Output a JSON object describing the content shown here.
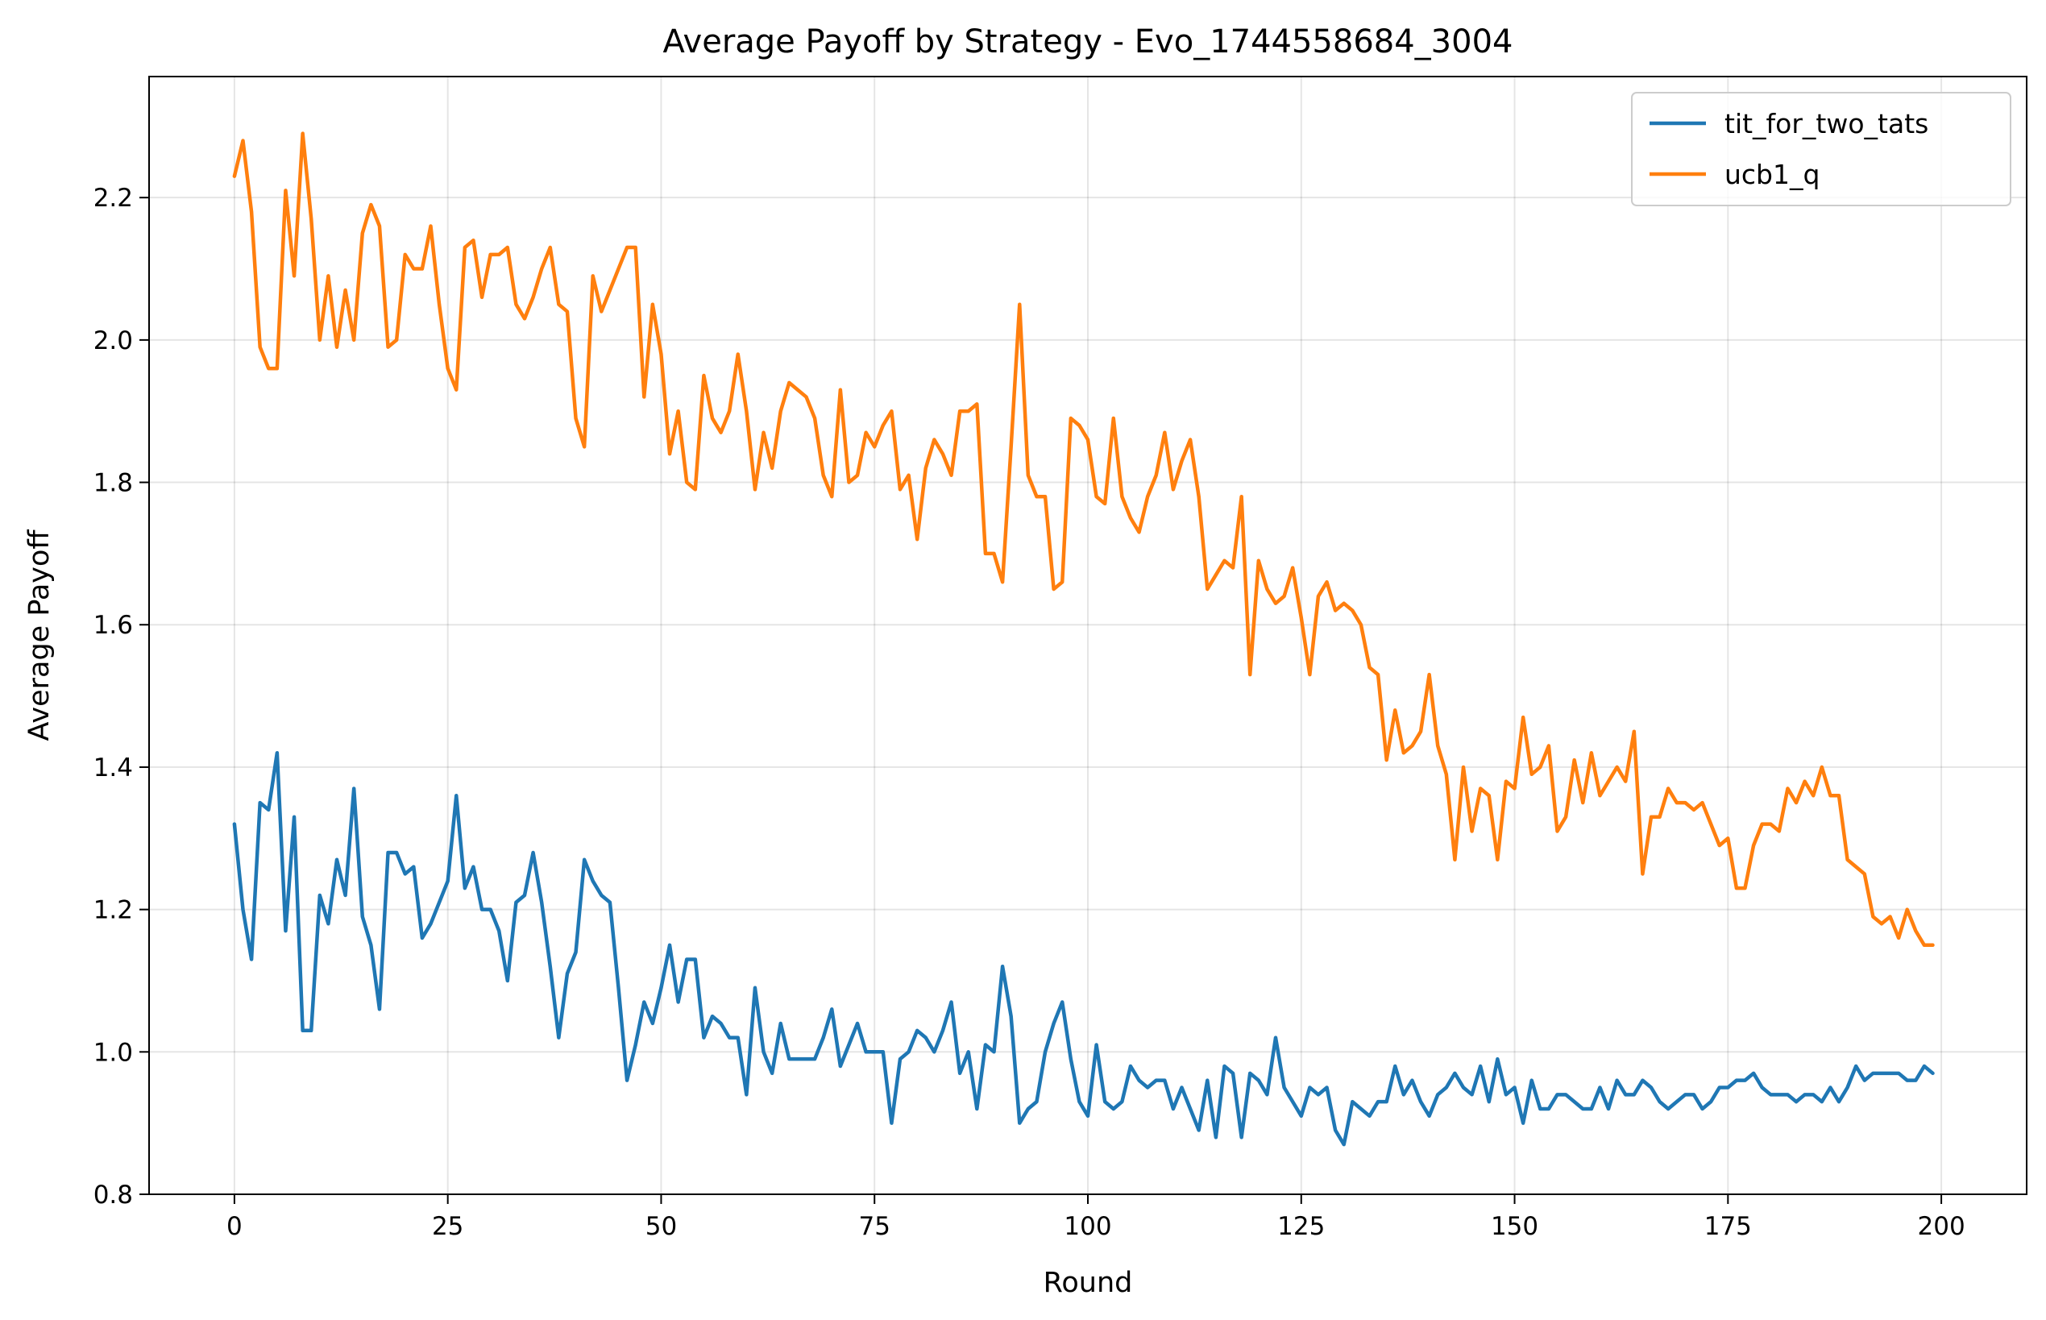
{
  "chart_data": {
    "type": "line",
    "title": "Average Payoff by Strategy - Evo_1744558684_3004",
    "xlabel": "Round",
    "ylabel": "Average Payoff",
    "xlim": [
      -10,
      210
    ],
    "ylim": [
      0.8,
      2.37
    ],
    "xticks": [
      0,
      25,
      50,
      75,
      100,
      125,
      150,
      175,
      200
    ],
    "xtick_labels": [
      "0",
      "25",
      "50",
      "75",
      "100",
      "125",
      "150",
      "175",
      "200"
    ],
    "yticks": [
      0.8,
      1.0,
      1.2,
      1.4,
      1.6,
      1.8,
      2.0,
      2.2
    ],
    "ytick_labels": [
      "0.8",
      "1.0",
      "1.2",
      "1.4",
      "1.6",
      "1.8",
      "2.0",
      "2.2"
    ],
    "grid": true,
    "legend_position": "top-right",
    "series": [
      {
        "name": "tit_for_two_tats",
        "color": "#1f77b4",
        "values": [
          1.32,
          1.2,
          1.13,
          1.35,
          1.34,
          1.42,
          1.17,
          1.33,
          1.03,
          1.03,
          1.22,
          1.18,
          1.27,
          1.22,
          1.37,
          1.19,
          1.15,
          1.06,
          1.28,
          1.28,
          1.25,
          1.26,
          1.16,
          1.18,
          1.21,
          1.24,
          1.36,
          1.23,
          1.26,
          1.2,
          1.2,
          1.17,
          1.1,
          1.21,
          1.22,
          1.28,
          1.21,
          1.12,
          1.02,
          1.11,
          1.14,
          1.27,
          1.24,
          1.22,
          1.21,
          1.09,
          0.96,
          1.01,
          1.07,
          1.04,
          1.09,
          1.15,
          1.07,
          1.13,
          1.13,
          1.02,
          1.05,
          1.04,
          1.02,
          1.02,
          0.94,
          1.09,
          1.0,
          0.97,
          1.04,
          0.99,
          0.99,
          0.99,
          0.99,
          1.02,
          1.06,
          0.98,
          1.01,
          1.04,
          1.0,
          1.0,
          1.0,
          0.9,
          0.99,
          1.0,
          1.03,
          1.02,
          1.0,
          1.03,
          1.07,
          0.97,
          1.0,
          0.92,
          1.01,
          1.0,
          1.12,
          1.05,
          0.9,
          0.92,
          0.93,
          1.0,
          1.04,
          1.07,
          0.99,
          0.93,
          0.91,
          1.01,
          0.93,
          0.92,
          0.93,
          0.98,
          0.96,
          0.95,
          0.96,
          0.96,
          0.92,
          0.95,
          0.92,
          0.89,
          0.96,
          0.88,
          0.98,
          0.97,
          0.88,
          0.97,
          0.96,
          0.94,
          1.02,
          0.95,
          0.93,
          0.91,
          0.95,
          0.94,
          0.95,
          0.89,
          0.87,
          0.93,
          0.92,
          0.91,
          0.93,
          0.93,
          0.98,
          0.94,
          0.96,
          0.93,
          0.91,
          0.94,
          0.95,
          0.97,
          0.95,
          0.94,
          0.98,
          0.93,
          0.99,
          0.94,
          0.95,
          0.9,
          0.96,
          0.92,
          0.92,
          0.94,
          0.94,
          0.93,
          0.92,
          0.92,
          0.95,
          0.92,
          0.96,
          0.94,
          0.94,
          0.96,
          0.95,
          0.93,
          0.92,
          0.93,
          0.94,
          0.94,
          0.92,
          0.93,
          0.95,
          0.95,
          0.96,
          0.96,
          0.97,
          0.95,
          0.94,
          0.94,
          0.94,
          0.93,
          0.94,
          0.94,
          0.93,
          0.95,
          0.93,
          0.95,
          0.98,
          0.96,
          0.97,
          0.97,
          0.97,
          0.97,
          0.96,
          0.96,
          0.98,
          0.97
        ]
      },
      {
        "name": "ucb1_q",
        "color": "#ff7f0e",
        "values": [
          2.23,
          2.28,
          2.18,
          1.99,
          1.96,
          1.96,
          2.21,
          2.09,
          2.29,
          2.17,
          2.0,
          2.09,
          1.99,
          2.07,
          2.0,
          2.15,
          2.19,
          2.16,
          1.99,
          2.0,
          2.12,
          2.1,
          2.1,
          2.16,
          2.05,
          1.96,
          1.93,
          2.13,
          2.14,
          2.06,
          2.12,
          2.12,
          2.13,
          2.05,
          2.03,
          2.06,
          2.1,
          2.13,
          2.05,
          2.04,
          1.89,
          1.85,
          2.09,
          2.04,
          2.07,
          2.1,
          2.13,
          2.13,
          1.92,
          2.05,
          1.98,
          1.84,
          1.9,
          1.8,
          1.79,
          1.95,
          1.89,
          1.87,
          1.9,
          1.98,
          1.9,
          1.79,
          1.87,
          1.82,
          1.9,
          1.94,
          1.93,
          1.92,
          1.89,
          1.81,
          1.78,
          1.93,
          1.8,
          1.81,
          1.87,
          1.85,
          1.88,
          1.9,
          1.79,
          1.81,
          1.72,
          1.82,
          1.86,
          1.84,
          1.81,
          1.9,
          1.9,
          1.91,
          1.7,
          1.7,
          1.66,
          1.85,
          2.05,
          1.81,
          1.78,
          1.78,
          1.65,
          1.66,
          1.89,
          1.88,
          1.86,
          1.78,
          1.77,
          1.89,
          1.78,
          1.75,
          1.73,
          1.78,
          1.81,
          1.87,
          1.79,
          1.83,
          1.86,
          1.78,
          1.65,
          1.67,
          1.69,
          1.68,
          1.78,
          1.53,
          1.69,
          1.65,
          1.63,
          1.64,
          1.68,
          1.61,
          1.53,
          1.64,
          1.66,
          1.62,
          1.63,
          1.62,
          1.6,
          1.54,
          1.53,
          1.41,
          1.48,
          1.42,
          1.43,
          1.45,
          1.53,
          1.43,
          1.39,
          1.27,
          1.4,
          1.31,
          1.37,
          1.36,
          1.27,
          1.38,
          1.37,
          1.47,
          1.39,
          1.4,
          1.43,
          1.31,
          1.33,
          1.41,
          1.35,
          1.42,
          1.36,
          1.38,
          1.4,
          1.38,
          1.45,
          1.25,
          1.33,
          1.33,
          1.37,
          1.35,
          1.35,
          1.34,
          1.35,
          1.32,
          1.29,
          1.3,
          1.23,
          1.23,
          1.29,
          1.32,
          1.32,
          1.31,
          1.37,
          1.35,
          1.38,
          1.36,
          1.4,
          1.36,
          1.36,
          1.27,
          1.26,
          1.25,
          1.19,
          1.18,
          1.19,
          1.16,
          1.2,
          1.17,
          1.15,
          1.15
        ]
      }
    ]
  }
}
